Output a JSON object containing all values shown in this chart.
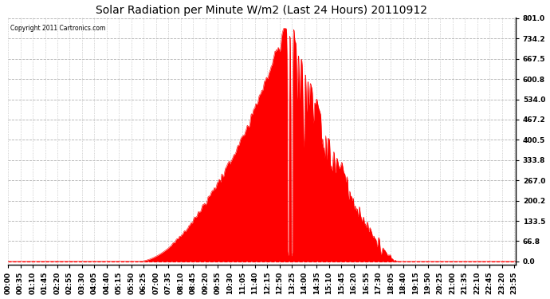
{
  "title": "Solar Radiation per Minute W/m2 (Last 24 Hours) 20110912",
  "copyright_text": "Copyright 2011 Cartronics.com",
  "yticks": [
    0.0,
    66.8,
    133.5,
    200.2,
    267.0,
    333.8,
    400.5,
    467.2,
    534.0,
    600.8,
    667.5,
    734.2,
    801.0
  ],
  "ymax": 801.0,
  "ymin": 0.0,
  "fill_color": "#ff0000",
  "line_color": "#ff0000",
  "dashed_line_color": "#ff0000",
  "grid_color": "#b0b0b0",
  "background_color": "#ffffff",
  "title_fontsize": 10,
  "tick_fontsize": 6.5,
  "copyright_fontsize": 5.5,
  "x_tick_labels": [
    "00:00",
    "00:35",
    "01:10",
    "01:45",
    "02:20",
    "02:55",
    "03:30",
    "04:05",
    "04:40",
    "05:15",
    "05:50",
    "06:25",
    "07:00",
    "07:35",
    "08:10",
    "08:45",
    "09:20",
    "09:55",
    "10:30",
    "11:05",
    "11:40",
    "12:15",
    "12:50",
    "13:25",
    "14:00",
    "14:35",
    "15:10",
    "15:45",
    "16:20",
    "16:55",
    "17:30",
    "18:05",
    "18:40",
    "19:15",
    "19:50",
    "20:25",
    "21:00",
    "21:35",
    "22:10",
    "22:45",
    "23:20",
    "23:55"
  ],
  "n_points": 1440
}
